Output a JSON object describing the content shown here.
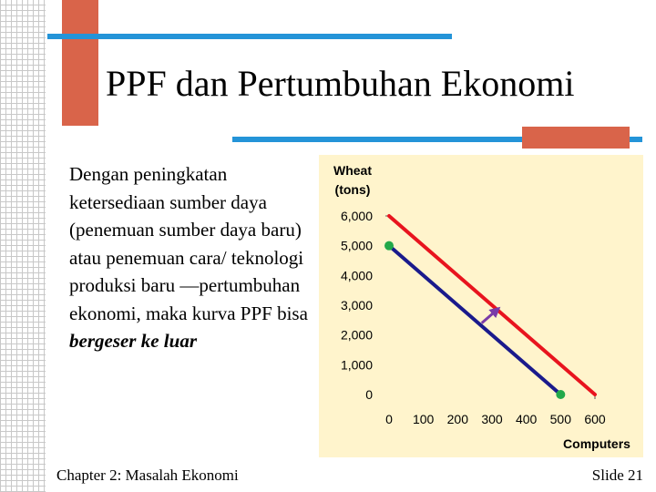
{
  "slide": {
    "title": "PPF dan Pertumbuhan Ekonomi",
    "body": {
      "prefix": "Dengan peningkatan ketersediaan sumber daya (penemuan sumber daya baru) atau penemuan cara/ teknologi produksi baru —pertumbuhan ekonomi, maka kurva PPF bisa ",
      "emphasis": "bergeser ke luar"
    },
    "footer_left": "Chapter 2: Masalah Ekonomi",
    "footer_right": "Slide 21"
  },
  "colors": {
    "accent_orange": "#d9644a",
    "accent_blue": "#2494d8",
    "chart_background": "#fff4cc",
    "original_ppf": "#1a1a8c",
    "new_ppf": "#e8141e",
    "points": "#22a84a",
    "shift_arrow": "#7a3aa8"
  },
  "chart_data": {
    "type": "line",
    "title": "",
    "xlabel": "Computers",
    "ylabel": "Wheat (tons)",
    "ylabel_lines": [
      "Wheat",
      "(tons)"
    ],
    "xlim": [
      0,
      600
    ],
    "ylim": [
      0,
      6000
    ],
    "x_ticks": [
      0,
      100,
      200,
      300,
      400,
      500,
      600
    ],
    "x_tick_labels": [
      "0",
      "100",
      "200",
      "300",
      "400",
      "500",
      "600"
    ],
    "y_ticks": [
      0,
      1000,
      2000,
      3000,
      4000,
      5000,
      6000
    ],
    "y_tick_labels": [
      "0",
      "1,000",
      "2,000",
      "3,000",
      "4,000",
      "5,000",
      "6,000"
    ],
    "grid": false,
    "legend": "none",
    "series": [
      {
        "color": "#1a1a8c",
        "x": [
          0,
          500
        ],
        "y": [
          5000,
          0
        ]
      },
      {
        "color": "#e8141e",
        "x": [
          0,
          600
        ],
        "y": [
          6000,
          0
        ]
      }
    ],
    "points": [
      {
        "x": 0,
        "y": 5000
      },
      {
        "x": 500,
        "y": 0
      }
    ],
    "annotations": [
      {
        "type": "arrow",
        "from": [
          270,
          2400
        ],
        "to": [
          320,
          2900
        ],
        "color": "#7a3aa8"
      }
    ]
  }
}
